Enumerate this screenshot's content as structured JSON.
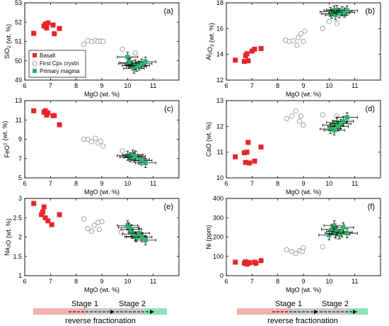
{
  "figure": {
    "x_axis": {
      "label": "MgO (wt. %)",
      "lim": [
        6,
        12
      ],
      "ticks": [
        6,
        7,
        8,
        9,
        10,
        11
      ]
    },
    "colors": {
      "basalt": "#e8242a",
      "primary": "#2db36b",
      "cpx_stroke": "#9a9a9a",
      "error": "#000000",
      "arrow_pink": "#f4b0b0",
      "arrow_gray": "#c8c8c8",
      "arrow_green": "#8fe0b8"
    },
    "legend": {
      "basalt": "Basalt",
      "cpx": "First Cpx crystn",
      "primary": "Primary magma"
    },
    "bottom": {
      "stage1": "Stage 1",
      "stage2": "Stage 2",
      "caption": "reverse fractionation"
    }
  },
  "chart_data": [
    {
      "type": "scatter",
      "panel": "(a)",
      "ylabel": "SiO2 (wt. %)",
      "ylim": [
        49,
        53
      ],
      "yticks": [
        49,
        50,
        51,
        52,
        53
      ],
      "ytick_labels": [
        "49",
        "50",
        "51",
        "52",
        "53"
      ],
      "series": [
        {
          "name": "Basalt",
          "points": [
            [
              6.35,
              51.42
            ],
            [
              6.75,
              51.8
            ],
            [
              6.8,
              51.9
            ],
            [
              6.85,
              51.7
            ],
            [
              6.9,
              51.96
            ],
            [
              7.1,
              51.85
            ],
            [
              7.15,
              51.4
            ],
            [
              7.35,
              51.67
            ]
          ]
        },
        {
          "name": "First Cpx crystn",
          "points": [
            [
              8.3,
              50.85
            ],
            [
              8.45,
              51.05
            ],
            [
              8.6,
              51.0
            ],
            [
              8.75,
              51.05
            ],
            [
              8.85,
              51.0
            ],
            [
              8.95,
              51.02
            ],
            [
              9.05,
              51.0
            ],
            [
              9.8,
              50.6
            ],
            [
              10.3,
              50.4
            ]
          ]
        },
        {
          "name": "Primary magma",
          "points": [
            [
              10.0,
              50.2
            ],
            [
              10.05,
              49.85
            ],
            [
              10.1,
              49.9
            ],
            [
              10.2,
              49.75
            ],
            [
              10.25,
              49.6
            ],
            [
              10.3,
              49.8
            ],
            [
              10.35,
              49.7
            ],
            [
              10.45,
              49.75
            ],
            [
              10.55,
              49.85
            ],
            [
              10.7,
              49.95
            ]
          ]
        }
      ]
    },
    {
      "type": "scatter",
      "panel": "(b)",
      "ylabel": "Al2O3 (wt. %)",
      "ylim": [
        12,
        18
      ],
      "yticks": [
        12,
        14,
        16,
        18
      ],
      "ytick_labels": [
        "12",
        "14",
        "16",
        "18"
      ],
      "series": [
        {
          "name": "Basalt",
          "points": [
            [
              6.35,
              13.55
            ],
            [
              6.7,
              13.45
            ],
            [
              6.75,
              13.9
            ],
            [
              6.8,
              14.05
            ],
            [
              6.85,
              13.5
            ],
            [
              7.0,
              14.25
            ],
            [
              7.1,
              14.4
            ],
            [
              7.35,
              14.45
            ]
          ]
        },
        {
          "name": "First Cpx crystn",
          "points": [
            [
              8.3,
              15.1
            ],
            [
              8.45,
              15.0
            ],
            [
              8.6,
              15.05
            ],
            [
              8.75,
              14.7
            ],
            [
              8.8,
              15.3
            ],
            [
              8.9,
              15.6
            ],
            [
              9.0,
              15.0
            ],
            [
              9.05,
              15.8
            ],
            [
              9.75,
              16.0
            ],
            [
              10.0,
              16.55
            ],
            [
              10.3,
              16.4
            ]
          ]
        },
        {
          "name": "Primary magma",
          "points": [
            [
              10.05,
              17.3
            ],
            [
              10.1,
              17.15
            ],
            [
              10.2,
              17.4
            ],
            [
              10.25,
              17.05
            ],
            [
              10.3,
              17.45
            ],
            [
              10.4,
              17.2
            ],
            [
              10.5,
              17.35
            ],
            [
              10.6,
              17.25
            ],
            [
              10.7,
              17.4
            ]
          ]
        }
      ]
    },
    {
      "type": "scatter",
      "panel": "(c)",
      "ylabel": "FeOT (wt. %)",
      "ylim": [
        5,
        13
      ],
      "yticks": [
        5,
        7,
        9,
        11,
        13
      ],
      "ytick_labels": [
        "5",
        "7",
        "9",
        "11",
        "13"
      ],
      "series": [
        {
          "name": "Basalt",
          "points": [
            [
              6.35,
              11.95
            ],
            [
              6.75,
              11.8
            ],
            [
              6.8,
              11.95
            ],
            [
              6.85,
              11.5
            ],
            [
              6.9,
              11.75
            ],
            [
              7.1,
              11.45
            ],
            [
              7.15,
              11.45
            ],
            [
              7.35,
              10.5
            ]
          ]
        },
        {
          "name": "First Cpx crystn",
          "points": [
            [
              8.3,
              9.0
            ],
            [
              8.45,
              9.0
            ],
            [
              8.6,
              8.75
            ],
            [
              8.75,
              9.1
            ],
            [
              8.85,
              8.6
            ],
            [
              8.95,
              8.8
            ],
            [
              9.05,
              8.3
            ],
            [
              9.8,
              7.8
            ],
            [
              10.3,
              7.6
            ]
          ]
        },
        {
          "name": "Primary magma",
          "points": [
            [
              10.0,
              7.3
            ],
            [
              10.1,
              7.15
            ],
            [
              10.2,
              7.4
            ],
            [
              10.25,
              7.1
            ],
            [
              10.3,
              7.25
            ],
            [
              10.45,
              6.9
            ],
            [
              10.55,
              6.8
            ],
            [
              10.7,
              6.55
            ]
          ]
        }
      ]
    },
    {
      "type": "scatter",
      "panel": "(d)",
      "ylabel": "CaO (wt. %)",
      "ylim": [
        10,
        13
      ],
      "yticks": [
        10,
        11,
        12,
        13
      ],
      "ytick_labels": [
        "10",
        "11",
        "12",
        "13"
      ],
      "series": [
        {
          "name": "Basalt",
          "points": [
            [
              6.35,
              10.82
            ],
            [
              6.7,
              10.98
            ],
            [
              6.75,
              10.6
            ],
            [
              6.8,
              11.0
            ],
            [
              6.85,
              11.38
            ],
            [
              6.9,
              10.58
            ],
            [
              7.1,
              10.65
            ],
            [
              7.35,
              11.2
            ]
          ]
        },
        {
          "name": "First Cpx crystn",
          "points": [
            [
              8.35,
              12.3
            ],
            [
              8.55,
              12.4
            ],
            [
              8.7,
              12.6
            ],
            [
              8.85,
              12.2
            ],
            [
              8.9,
              12.4
            ],
            [
              9.0,
              12.05
            ],
            [
              9.75,
              12.45
            ],
            [
              10.3,
              12.4
            ]
          ]
        },
        {
          "name": "Primary magma",
          "points": [
            [
              10.05,
              11.9
            ],
            [
              10.15,
              12.05
            ],
            [
              10.2,
              11.85
            ],
            [
              10.3,
              12.15
            ],
            [
              10.35,
              12.0
            ],
            [
              10.45,
              12.1
            ],
            [
              10.55,
              12.2
            ],
            [
              10.7,
              12.35
            ]
          ]
        }
      ]
    },
    {
      "type": "scatter",
      "panel": "(e)",
      "ylabel": "Na2O (wt. %)",
      "ylim": [
        1,
        3
      ],
      "yticks": [
        1,
        1.5,
        2,
        2.5,
        3
      ],
      "ytick_labels": [
        "1",
        "1.5",
        "2",
        "2.5",
        "3"
      ],
      "series": [
        {
          "name": "Basalt",
          "points": [
            [
              6.35,
              2.87
            ],
            [
              6.65,
              2.58
            ],
            [
              6.7,
              2.65
            ],
            [
              6.75,
              2.78
            ],
            [
              6.8,
              2.5
            ],
            [
              6.9,
              2.42
            ],
            [
              7.05,
              2.32
            ],
            [
              7.35,
              2.58
            ]
          ]
        },
        {
          "name": "First Cpx crystn",
          "points": [
            [
              8.3,
              2.47
            ],
            [
              8.45,
              2.22
            ],
            [
              8.6,
              2.15
            ],
            [
              8.7,
              2.3
            ],
            [
              8.85,
              2.38
            ],
            [
              8.9,
              2.2
            ],
            [
              9.0,
              2.4
            ],
            [
              9.75,
              2.12
            ],
            [
              10.3,
              2.05
            ]
          ]
        },
        {
          "name": "Primary magma",
          "points": [
            [
              10.0,
              2.3
            ],
            [
              10.05,
              2.25
            ],
            [
              10.15,
              2.2
            ],
            [
              10.2,
              2.08
            ],
            [
              10.3,
              2.02
            ],
            [
              10.35,
              2.0
            ],
            [
              10.45,
              2.1
            ],
            [
              10.55,
              2.0
            ],
            [
              10.7,
              1.92
            ]
          ]
        }
      ]
    },
    {
      "type": "scatter",
      "panel": "(f)",
      "ylabel": "Ni (ppm)",
      "ylim": [
        0,
        400
      ],
      "yticks": [
        0,
        100,
        200,
        300,
        400
      ],
      "ytick_labels": [
        "0",
        "100",
        "200",
        "300",
        "400"
      ],
      "series": [
        {
          "name": "Basalt",
          "points": [
            [
              6.35,
              70
            ],
            [
              6.7,
              65
            ],
            [
              6.75,
              72
            ],
            [
              6.8,
              60
            ],
            [
              6.85,
              68
            ],
            [
              6.9,
              66
            ],
            [
              7.1,
              70
            ],
            [
              7.15,
              64
            ],
            [
              7.35,
              78
            ]
          ]
        },
        {
          "name": "First Cpx crystn",
          "points": [
            [
              8.35,
              135
            ],
            [
              8.55,
              125
            ],
            [
              8.7,
              115
            ],
            [
              8.85,
              130
            ],
            [
              8.95,
              125
            ],
            [
              9.0,
              145
            ],
            [
              9.75,
              150
            ],
            [
              10.3,
              200
            ]
          ]
        },
        {
          "name": "Primary magma",
          "points": [
            [
              10.0,
              210
            ],
            [
              10.1,
              240
            ],
            [
              10.2,
              260
            ],
            [
              10.25,
              220
            ],
            [
              10.3,
              230
            ],
            [
              10.4,
              215
            ],
            [
              10.5,
              225
            ],
            [
              10.55,
              250
            ],
            [
              10.7,
              220
            ]
          ]
        }
      ]
    }
  ]
}
